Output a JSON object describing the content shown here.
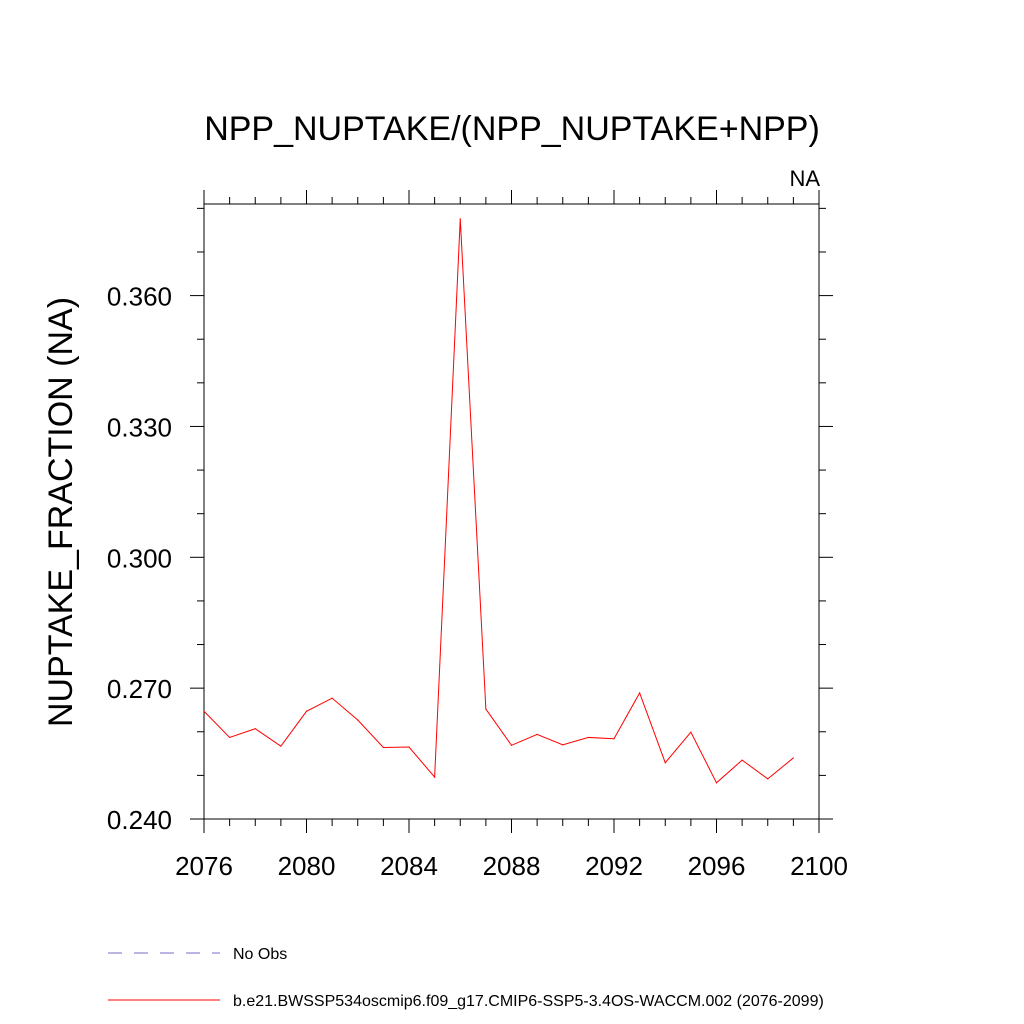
{
  "chart_data": {
    "type": "line",
    "title": "NPP_NUPTAKE/(NPP_NUPTAKE+NPP)",
    "subtitle_right": "NA",
    "xlabel": "",
    "ylabel": "NUPTAKE_FRACTION  (NA)",
    "xlim": [
      2076,
      2100
    ],
    "ylim": [
      0.24,
      0.381
    ],
    "xticks": [
      2076,
      2080,
      2084,
      2088,
      2092,
      2096,
      2100
    ],
    "yticks": [
      0.24,
      0.27,
      0.3,
      0.33,
      0.36
    ],
    "ytick_labels": [
      "0.240",
      "0.270",
      "0.300",
      "0.330",
      "0.360"
    ],
    "series": [
      {
        "name": "b.e21.BWSSP534oscmip6.f09_g17.CMIP6-SSP5-3.4OS-WACCM.002 (2076-2099)",
        "color": "#ff0000",
        "x": [
          2076,
          2077,
          2078,
          2079,
          2080,
          2081,
          2082,
          2083,
          2084,
          2085,
          2086,
          2087,
          2088,
          2089,
          2090,
          2091,
          2092,
          2093,
          2094,
          2095,
          2096,
          2097,
          2098,
          2099
        ],
        "values": [
          0.2647,
          0.2587,
          0.2607,
          0.2567,
          0.2647,
          0.2677,
          0.2627,
          0.2564,
          0.2565,
          0.2496,
          0.3776,
          0.2652,
          0.2569,
          0.2594,
          0.257,
          0.2587,
          0.2584,
          0.2689,
          0.2529,
          0.2599,
          0.2483,
          0.2535,
          0.2492,
          0.254
        ]
      }
    ],
    "legend": [
      {
        "label": "No Obs",
        "color": "#7b68c8",
        "style": "dashed"
      },
      {
        "label": "b.e21.BWSSP534oscmip6.f09_g17.CMIP6-SSP5-3.4OS-WACCM.002 (2076-2099)",
        "color": "#ff0000",
        "style": "solid"
      }
    ]
  }
}
